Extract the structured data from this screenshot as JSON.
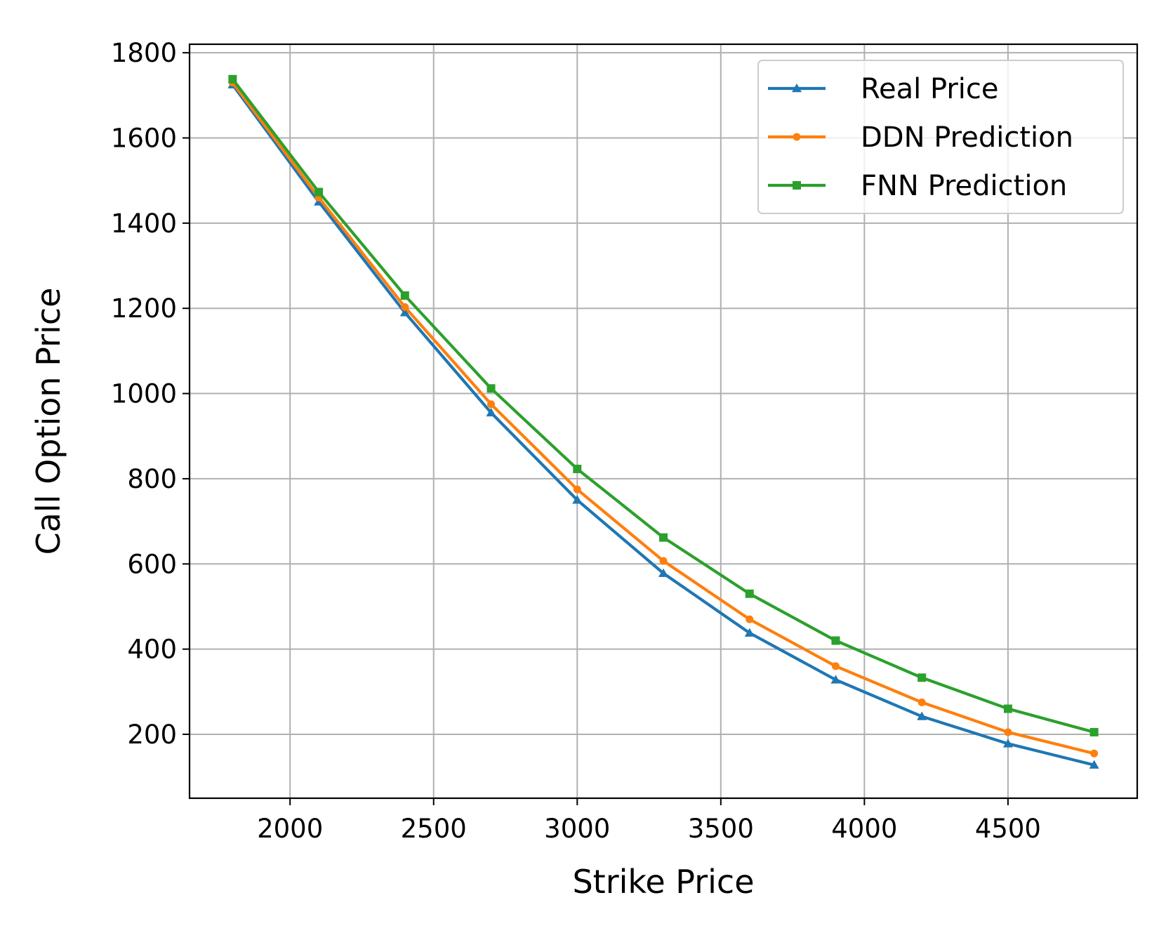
{
  "chart_data": {
    "type": "line",
    "title": "",
    "xlabel": "Strike Price",
    "ylabel": "Call Option Price",
    "xlim": [
      1650,
      4950
    ],
    "ylim": [
      50,
      1820
    ],
    "xticks": [
      2000,
      2500,
      3000,
      3500,
      4000,
      4500
    ],
    "yticks": [
      200,
      400,
      600,
      800,
      1000,
      1200,
      1400,
      1600,
      1800
    ],
    "grid": true,
    "legend_position": "top-right",
    "x": [
      1800,
      2100,
      2400,
      2700,
      3000,
      3300,
      3600,
      3900,
      4200,
      4500,
      4800
    ],
    "series": [
      {
        "name": "Real Price",
        "color": "#1f77b4",
        "marker": "triangle",
        "values": [
          1725,
          1450,
          1190,
          955,
          750,
          578,
          438,
          328,
          242,
          178,
          128
        ]
      },
      {
        "name": "DDN Prediction",
        "color": "#ff7f0e",
        "marker": "circle",
        "values": [
          1730,
          1460,
          1203,
          975,
          775,
          607,
          470,
          360,
          275,
          205,
          155
        ]
      },
      {
        "name": "FNN Prediction",
        "color": "#2ca02c",
        "marker": "square",
        "values": [
          1738,
          1473,
          1230,
          1012,
          823,
          662,
          530,
          420,
          333,
          260,
          205
        ]
      }
    ]
  }
}
